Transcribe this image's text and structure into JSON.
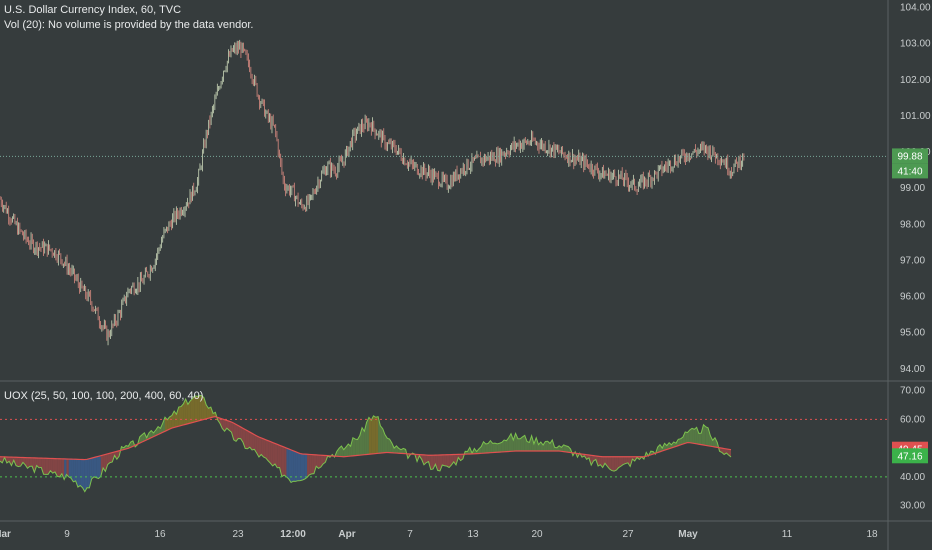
{
  "header": {
    "symbol_title": "U.S. Dollar Currency Index, 60, TVC",
    "volume_note": "Vol (20): No volume is provided by the data vendor.",
    "indicator_title": "UOX (25, 50, 100, 100, 200, 400, 60, 40)"
  },
  "colors": {
    "background": "#363c3d",
    "up_candle": "#c9d6b8",
    "down_candle": "#d98a80",
    "last_price_line": "#7aa89a",
    "uox_green": "#7cc24e",
    "uox_red": "#e05050",
    "uox_blue": "#3f7ad8",
    "uox_yellow": "#c8a418",
    "level_upper": "#e05050",
    "level_lower": "#4cc24c"
  },
  "chart_data": [
    {
      "type": "candlestick",
      "title": "U.S. Dollar Currency Index, 60, TVC",
      "y_ticks": [
        "104.00",
        "103.00",
        "102.00",
        "101.00",
        "100.00",
        "99.00",
        "98.00",
        "97.00",
        "96.00",
        "95.00",
        "94.00"
      ],
      "ylim": [
        93.8,
        104.1
      ],
      "last_price": "99.88",
      "countdown": "41:40",
      "path_t": [
        0.0,
        0.01,
        0.02,
        0.03,
        0.04,
        0.05,
        0.06,
        0.07,
        0.085,
        0.095,
        0.105,
        0.115,
        0.125,
        0.14,
        0.15,
        0.165,
        0.18,
        0.19,
        0.2,
        0.21,
        0.22,
        0.23,
        0.24,
        0.25,
        0.26,
        0.27,
        0.28,
        0.29,
        0.3,
        0.31,
        0.32,
        0.33,
        0.34,
        0.35,
        0.36,
        0.37,
        0.38,
        0.39,
        0.4,
        0.41,
        0.42,
        0.43,
        0.44,
        0.45,
        0.46,
        0.47,
        0.48,
        0.5,
        0.52,
        0.54,
        0.56,
        0.58,
        0.6,
        0.62,
        0.64,
        0.66,
        0.68,
        0.7,
        0.72,
        0.74,
        0.76,
        0.78,
        0.8,
        0.82,
        0.84,
        0.85,
        0.865
      ],
      "path_v": [
        98.7,
        98.3,
        97.9,
        97.6,
        97.4,
        97.35,
        97.3,
        97.1,
        96.6,
        96.2,
        95.9,
        95.4,
        94.9,
        95.6,
        96.2,
        96.4,
        97.0,
        97.7,
        98.1,
        98.4,
        98.7,
        99.2,
        100.5,
        101.4,
        102.3,
        102.8,
        102.9,
        102.4,
        101.6,
        101.0,
        100.6,
        99.1,
        98.9,
        98.5,
        98.6,
        99.2,
        99.6,
        99.5,
        99.8,
        100.4,
        100.7,
        100.8,
        100.5,
        100.2,
        100.1,
        99.8,
        99.6,
        99.4,
        99.1,
        99.6,
        99.8,
        99.9,
        100.2,
        100.3,
        100.1,
        99.9,
        99.7,
        99.4,
        99.3,
        99.05,
        99.35,
        99.7,
        99.95,
        100.1,
        99.8,
        99.5,
        99.88
      ],
      "x_tick_labels": [
        "Mar",
        "9",
        "16",
        "23",
        "12:00",
        "Apr",
        "7",
        "13",
        "20",
        "27",
        "May",
        "11",
        "18"
      ],
      "x_tick_bold": [
        true,
        false,
        false,
        false,
        true,
        true,
        false,
        false,
        false,
        false,
        true,
        false,
        false
      ]
    },
    {
      "type": "area",
      "title": "UOX (25, 50, 100, 100, 200, 400, 60, 40)",
      "y_ticks": [
        "70.00",
        "60.00",
        "50.00",
        "40.00",
        "30.00"
      ],
      "ylim": [
        25,
        73
      ],
      "upper_level": 60,
      "lower_level": 40,
      "series": [
        {
          "t": [
            0.0,
            0.02,
            0.04,
            0.06,
            0.08,
            0.1,
            0.12,
            0.14,
            0.16,
            0.18,
            0.2,
            0.21,
            0.22,
            0.23,
            0.24,
            0.25,
            0.26,
            0.27,
            0.28,
            0.3,
            0.32,
            0.34,
            0.36,
            0.38,
            0.4,
            0.42,
            0.43,
            0.44,
            0.45,
            0.46,
            0.48,
            0.5,
            0.52,
            0.54,
            0.56,
            0.58,
            0.6,
            0.62,
            0.64,
            0.66,
            0.68,
            0.7,
            0.72,
            0.74,
            0.76,
            0.78,
            0.8,
            0.82,
            0.84,
            0.85
          ],
          "values": [
            46,
            44,
            43,
            41,
            40,
            36,
            42,
            49,
            52,
            57,
            61,
            64,
            67,
            68,
            66,
            62,
            57,
            54,
            52,
            48,
            43,
            39,
            41,
            47,
            50,
            55,
            61,
            60,
            53,
            50,
            47,
            44,
            43,
            48,
            51,
            53,
            54,
            53,
            52,
            50,
            46,
            44,
            43,
            46,
            49,
            52,
            55,
            57,
            49,
            47.16
          ]
        },
        {
          "t": [
            0.0,
            0.05,
            0.1,
            0.15,
            0.2,
            0.25,
            0.27,
            0.3,
            0.35,
            0.4,
            0.45,
            0.5,
            0.55,
            0.6,
            0.65,
            0.7,
            0.75,
            0.8,
            0.85
          ],
          "values": [
            47,
            46.5,
            46,
            50,
            57,
            61,
            59,
            54,
            48,
            47,
            48.5,
            47.5,
            48,
            49,
            49,
            47,
            47,
            52,
            49.45
          ]
        }
      ],
      "x_tick_labels": [
        "Mar",
        "9",
        "16",
        "23",
        "12:00",
        "Apr",
        "7",
        "13",
        "20",
        "27",
        "May",
        "11",
        "18"
      ],
      "x_tick_bold": [
        true,
        false,
        false,
        false,
        true,
        true,
        false,
        false,
        false,
        false,
        true,
        false,
        false
      ]
    }
  ]
}
